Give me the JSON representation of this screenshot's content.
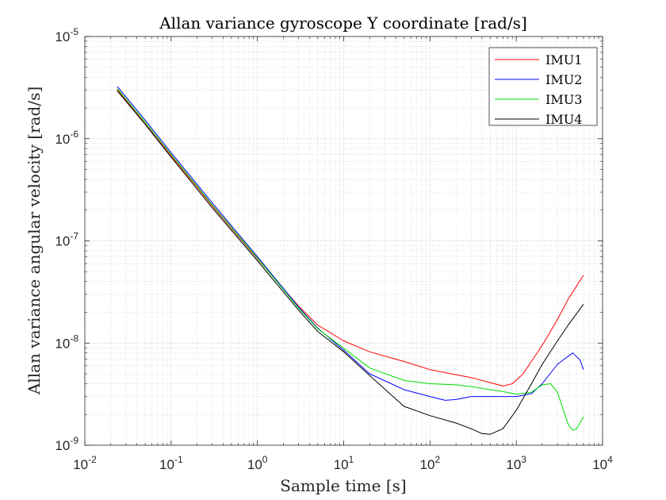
{
  "chart_data": {
    "type": "line",
    "title": "Allan variance gyroscope Y coordinate [rad/s]",
    "xlabel": "Sample time [s]",
    "ylabel": "Allan variance angular velocity [rad/s]",
    "x_scale": "log",
    "y_scale": "log",
    "xlim": [
      0.01,
      10000
    ],
    "ylim": [
      1e-09,
      1e-05
    ],
    "x_ticks": [
      {
        "value": 0.01,
        "base": "10",
        "exp": "-2"
      },
      {
        "value": 0.1,
        "base": "10",
        "exp": "-1"
      },
      {
        "value": 1,
        "base": "10",
        "exp": "0"
      },
      {
        "value": 10,
        "base": "10",
        "exp": "1"
      },
      {
        "value": 100,
        "base": "10",
        "exp": "2"
      },
      {
        "value": 1000,
        "base": "10",
        "exp": "3"
      },
      {
        "value": 10000,
        "base": "10",
        "exp": "4"
      }
    ],
    "y_ticks": [
      {
        "value": 1e-09,
        "base": "10",
        "exp": "-9"
      },
      {
        "value": 1e-08,
        "base": "10",
        "exp": "-8"
      },
      {
        "value": 1e-07,
        "base": "10",
        "exp": "-7"
      },
      {
        "value": 1e-06,
        "base": "10",
        "exp": "-6"
      },
      {
        "value": 1e-05,
        "base": "10",
        "exp": "-5"
      }
    ],
    "grid": true,
    "minor_grid": true,
    "legend_position": "top-right",
    "series": [
      {
        "name": "IMU1",
        "color": "#ff0000",
        "points": [
          [
            0.0237,
            3.02e-06
          ],
          [
            0.05,
            1.4e-06
          ],
          [
            0.1,
            6.8e-07
          ],
          [
            0.3,
            2.2e-07
          ],
          [
            1,
            6.7e-08
          ],
          [
            3,
            2.3e-08
          ],
          [
            5,
            1.5e-08
          ],
          [
            10,
            1.05e-08
          ],
          [
            20,
            8.2e-09
          ],
          [
            50,
            6.6e-09
          ],
          [
            100,
            5.5e-09
          ],
          [
            200,
            4.9e-09
          ],
          [
            300,
            4.6e-09
          ],
          [
            500,
            4.1e-09
          ],
          [
            700,
            3.8e-09
          ],
          [
            900,
            4e-09
          ],
          [
            1200,
            5e-09
          ],
          [
            2000,
            9.5e-09
          ],
          [
            3000,
            1.7e-08
          ],
          [
            4000,
            2.7e-08
          ],
          [
            6000,
            4.6e-08
          ]
        ]
      },
      {
        "name": "IMU2",
        "color": "#0000ff",
        "points": [
          [
            0.0237,
            3.25e-06
          ],
          [
            0.05,
            1.52e-06
          ],
          [
            0.1,
            7.3e-07
          ],
          [
            0.3,
            2.35e-07
          ],
          [
            1,
            7e-08
          ],
          [
            3,
            2.25e-08
          ],
          [
            5,
            1.4e-08
          ],
          [
            10,
            8.5e-09
          ],
          [
            20,
            5e-09
          ],
          [
            50,
            3.5e-09
          ],
          [
            100,
            3e-09
          ],
          [
            150,
            2.75e-09
          ],
          [
            200,
            2.8e-09
          ],
          [
            300,
            3e-09
          ],
          [
            500,
            3e-09
          ],
          [
            1000,
            3e-09
          ],
          [
            1500,
            3.2e-09
          ],
          [
            2000,
            4e-09
          ],
          [
            3000,
            6.2e-09
          ],
          [
            4500,
            8e-09
          ],
          [
            5500,
            6.8e-09
          ],
          [
            6000,
            5.5e-09
          ]
        ]
      },
      {
        "name": "IMU3",
        "color": "#00dd00",
        "points": [
          [
            0.0237,
            3.1e-06
          ],
          [
            0.05,
            1.45e-06
          ],
          [
            0.1,
            7e-07
          ],
          [
            0.3,
            2.25e-07
          ],
          [
            1,
            6.8e-08
          ],
          [
            3,
            2.2e-08
          ],
          [
            5,
            1.38e-08
          ],
          [
            10,
            8.9e-09
          ],
          [
            20,
            5.7e-09
          ],
          [
            50,
            4.3e-09
          ],
          [
            100,
            4e-09
          ],
          [
            200,
            3.9e-09
          ],
          [
            300,
            3.75e-09
          ],
          [
            500,
            3.5e-09
          ],
          [
            700,
            3.35e-09
          ],
          [
            1000,
            3.15e-09
          ],
          [
            1500,
            3.3e-09
          ],
          [
            2000,
            3.9e-09
          ],
          [
            2500,
            4e-09
          ],
          [
            3000,
            3.3e-09
          ],
          [
            4000,
            1.6e-09
          ],
          [
            4500,
            1.4e-09
          ],
          [
            5000,
            1.45e-09
          ],
          [
            6000,
            1.9e-09
          ]
        ]
      },
      {
        "name": "IMU4",
        "color": "#000000",
        "points": [
          [
            0.0237,
            2.95e-06
          ],
          [
            0.05,
            1.38e-06
          ],
          [
            0.1,
            6.6e-07
          ],
          [
            0.3,
            2.1e-07
          ],
          [
            1,
            6.4e-08
          ],
          [
            3,
            2.1e-08
          ],
          [
            5,
            1.3e-08
          ],
          [
            10,
            8.2e-09
          ],
          [
            20,
            4.8e-09
          ],
          [
            50,
            2.4e-09
          ],
          [
            100,
            1.95e-09
          ],
          [
            200,
            1.65e-09
          ],
          [
            300,
            1.45e-09
          ],
          [
            400,
            1.3e-09
          ],
          [
            500,
            1.28e-09
          ],
          [
            700,
            1.45e-09
          ],
          [
            1000,
            2.2e-09
          ],
          [
            1500,
            4e-09
          ],
          [
            2000,
            6.2e-09
          ],
          [
            3000,
            1.05e-08
          ],
          [
            4000,
            1.5e-08
          ],
          [
            6000,
            2.4e-08
          ]
        ]
      }
    ]
  }
}
